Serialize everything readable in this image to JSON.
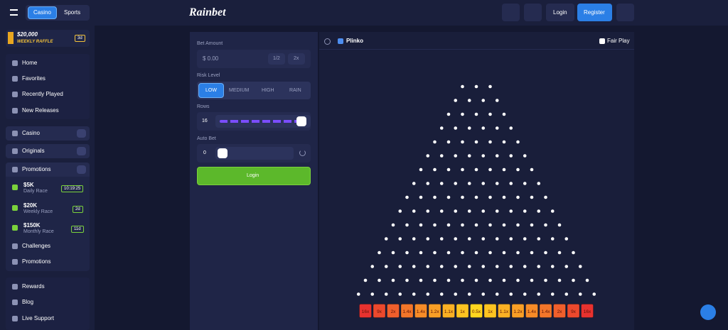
{
  "topbar": {
    "tabs": [
      "Casino",
      "Sports"
    ],
    "logo": "Rainbet",
    "login": "Login",
    "register": "Register"
  },
  "sidebar": {
    "raffle": {
      "amount": "$20,000",
      "label": "WEEKLY RAFFLE",
      "badge": "3d"
    },
    "nav": [
      "Home",
      "Favorites",
      "Recently Played",
      "New Releases"
    ],
    "sections": [
      "Casino",
      "Originals",
      "Promotions"
    ],
    "races": [
      {
        "amount": "$5K",
        "label": "Daily Race",
        "badge": "10:19:25"
      },
      {
        "amount": "$20K",
        "label": "Weekly Race",
        "badge": "2d"
      },
      {
        "amount": "$150K",
        "label": "Monthly Race",
        "badge": "11d"
      }
    ],
    "promo_links": [
      "Challenges",
      "Promotions"
    ],
    "footer_links": [
      "Rewards",
      "Blog",
      "Live Support"
    ]
  },
  "controls": {
    "bet_amount_label": "Bet Amount",
    "bet_amount": "$ 0.00",
    "half": "1/2",
    "double": "2x",
    "risk_label": "Risk Level",
    "risk_options": [
      "LOW",
      "MEDIUM",
      "HIGH",
      "RAIN"
    ],
    "rows_label": "Rows",
    "rows": 16,
    "auto_bet_label": "Auto Bet",
    "auto_bet": 0,
    "button": "Login"
  },
  "game": {
    "title": "Plinko",
    "fair_play": "Fair Play",
    "multipliers": [
      "16x",
      "9x",
      "2x",
      "1.4x",
      "1.4x",
      "1.2x",
      "1.1x",
      "1x",
      "0.5x",
      "1x",
      "1.1x",
      "1.2x",
      "1.4x",
      "1.4x",
      "2x",
      "9x",
      "16x"
    ]
  }
}
